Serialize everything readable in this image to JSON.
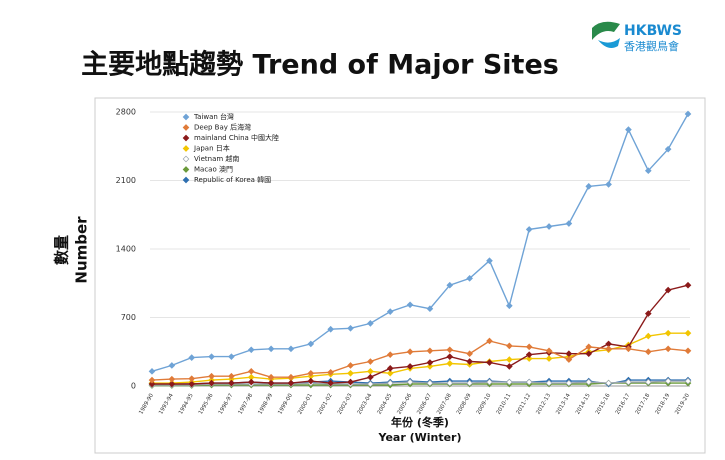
{
  "title": "主要地點趨勢 Trend of Major Sites",
  "logo": {
    "name": "HKBWS",
    "subtitle": "香港觀鳥會"
  },
  "chart_data": {
    "type": "line",
    "xlabel": [
      "年份 (冬季)",
      "Year (Winter)"
    ],
    "ylabel": [
      "數量",
      "Number"
    ],
    "categories": [
      "1989-90",
      "1993-94",
      "1994-95",
      "1995-96",
      "1996-97",
      "1997-98",
      "1998-99",
      "1999-00",
      "2000-01",
      "2001-02",
      "2002-03",
      "2003-04",
      "2004-05",
      "2005-06",
      "2006-07",
      "2007-08",
      "2008-09",
      "2009-10",
      "2010-11",
      "2011-12",
      "2012-13",
      "2013-14",
      "2014-15",
      "2015-16",
      "2016-17",
      "2017-18",
      "2018-19",
      "2019-20"
    ],
    "ylim": [
      0,
      2800
    ],
    "yticks": [
      0,
      700,
      1400,
      2100,
      2800
    ],
    "series": [
      {
        "name": "Taiwan 台灣",
        "color": "#6fa3d6",
        "values": [
          150,
          210,
          290,
          300,
          300,
          370,
          380,
          380,
          430,
          580,
          590,
          640,
          760,
          830,
          790,
          1030,
          1100,
          1280,
          820,
          1600,
          1630,
          1660,
          2040,
          2060,
          2620,
          2200,
          2420,
          2780
        ]
      },
      {
        "name": "Deep Bay 后海灣",
        "color": "#e07b39",
        "values": [
          60,
          70,
          75,
          100,
          100,
          150,
          90,
          90,
          130,
          140,
          210,
          250,
          320,
          350,
          360,
          370,
          330,
          460,
          410,
          400,
          360,
          270,
          400,
          380,
          380,
          350,
          380,
          360
        ]
      },
      {
        "name": "mainland China 中國大陸",
        "color": "#8b1a1a",
        "values": [
          20,
          20,
          20,
          30,
          30,
          40,
          30,
          30,
          50,
          30,
          40,
          90,
          180,
          200,
          240,
          300,
          250,
          240,
          200,
          320,
          340,
          330,
          330,
          430,
          400,
          740,
          980,
          1030
        ]
      },
      {
        "name": "Japan 日本",
        "color": "#f2c500",
        "values": [
          30,
          30,
          40,
          60,
          70,
          90,
          70,
          80,
          100,
          120,
          130,
          150,
          130,
          180,
          200,
          230,
          220,
          250,
          270,
          280,
          280,
          300,
          350,
          370,
          420,
          510,
          540,
          540
        ]
      },
      {
        "name": "Vietnam 越南",
        "color": "#9aa4ad",
        "values": [
          10,
          10,
          10,
          20,
          20,
          20,
          20,
          20,
          30,
          20,
          20,
          20,
          30,
          40,
          30,
          30,
          30,
          40,
          40,
          40,
          30,
          30,
          40,
          30,
          40,
          40,
          50,
          50
        ]
      },
      {
        "name": "Macao 澳門",
        "color": "#6a9a3a",
        "values": [
          5,
          5,
          5,
          10,
          10,
          10,
          10,
          10,
          10,
          10,
          10,
          10,
          10,
          20,
          20,
          20,
          20,
          20,
          20,
          20,
          20,
          20,
          20,
          30,
          30,
          30,
          30,
          30
        ]
      },
      {
        "name": "Republic of Korea 韓國",
        "color": "#2e6fb0",
        "values": [
          30,
          20,
          20,
          30,
          30,
          40,
          30,
          30,
          40,
          50,
          40,
          30,
          40,
          50,
          40,
          50,
          50,
          50,
          40,
          40,
          50,
          50,
          50,
          20,
          60,
          60,
          60,
          60
        ]
      }
    ]
  }
}
